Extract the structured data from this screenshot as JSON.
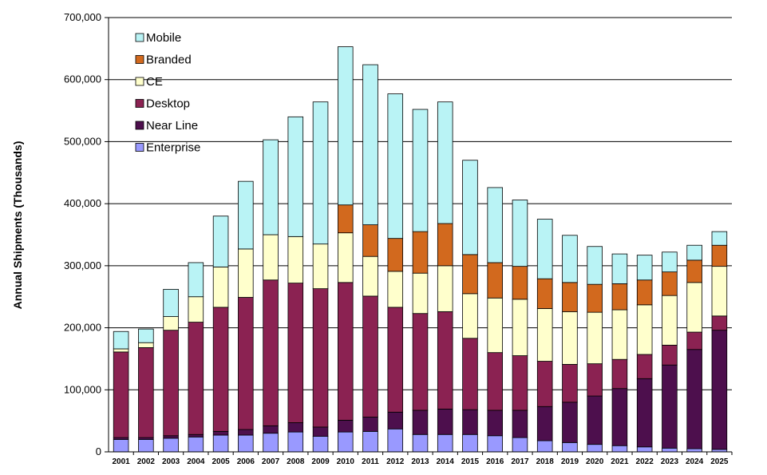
{
  "chart_data": {
    "type": "bar",
    "stacked": true,
    "title": "",
    "xlabel": "",
    "ylabel": "Annual Shipments (Thousands)",
    "ylim": [
      0,
      700000
    ],
    "yticks": [
      "0",
      "100,000",
      "200,000",
      "300,000",
      "400,000",
      "500,000",
      "600,000",
      "700,000"
    ],
    "ytick_values": [
      0,
      100000,
      200000,
      300000,
      400000,
      500000,
      600000,
      700000
    ],
    "grid": true,
    "legend_position": "top-left",
    "categories": [
      "2001",
      "2002",
      "2003",
      "2004",
      "2005",
      "2006",
      "2007",
      "2008",
      "2009",
      "2010",
      "2011",
      "2012",
      "2013",
      "2014",
      "2015",
      "2016",
      "2017",
      "2018",
      "2019",
      "2020",
      "2021",
      "2022",
      "2023",
      "2024",
      "2025"
    ],
    "series": [
      {
        "name": "Enterprise",
        "color": "#9999ff",
        "values": [
          20000,
          20000,
          22000,
          24000,
          27000,
          27000,
          30000,
          32000,
          25000,
          32000,
          33000,
          37000,
          28000,
          28000,
          28000,
          26000,
          23000,
          18000,
          15000,
          12000,
          10000,
          8000,
          6000,
          5000,
          4000
        ]
      },
      {
        "name": "Near Line",
        "color": "#4d0f4d",
        "values": [
          3000,
          3000,
          4000,
          4000,
          6000,
          9000,
          12000,
          15000,
          15000,
          19000,
          23000,
          27000,
          39000,
          41000,
          40000,
          41000,
          44000,
          55000,
          65000,
          78000,
          92000,
          110000,
          134000,
          160000,
          192000
        ]
      },
      {
        "name": "Desktop",
        "color": "#8b2252",
        "values": [
          138000,
          145000,
          170000,
          181000,
          200000,
          213000,
          235000,
          225000,
          223000,
          222000,
          195000,
          169000,
          156000,
          157000,
          115000,
          93000,
          88000,
          73000,
          61000,
          52000,
          47000,
          39000,
          32000,
          28000,
          23000
        ]
      },
      {
        "name": "CE",
        "color": "#ffffcc",
        "values": [
          5000,
          8000,
          22000,
          41000,
          65000,
          78000,
          73000,
          75000,
          72000,
          80000,
          64000,
          58000,
          65000,
          74000,
          72000,
          88000,
          91000,
          85000,
          85000,
          83000,
          80000,
          80000,
          80000,
          80000,
          80000
        ]
      },
      {
        "name": "Branded",
        "color": "#d2691e",
        "values": [
          0,
          0,
          0,
          0,
          0,
          0,
          0,
          0,
          0,
          45000,
          51000,
          53000,
          67000,
          68000,
          63000,
          57000,
          53000,
          48000,
          47000,
          45000,
          42000,
          40000,
          38000,
          36000,
          34000
        ]
      },
      {
        "name": "Mobile",
        "color": "#b9f3f5",
        "values": [
          28000,
          22000,
          44000,
          55000,
          82000,
          109000,
          153000,
          193000,
          229000,
          255000,
          258000,
          233000,
          197000,
          196000,
          152000,
          121000,
          107000,
          96000,
          76000,
          61000,
          48000,
          40000,
          32000,
          24000,
          22000
        ]
      }
    ]
  }
}
